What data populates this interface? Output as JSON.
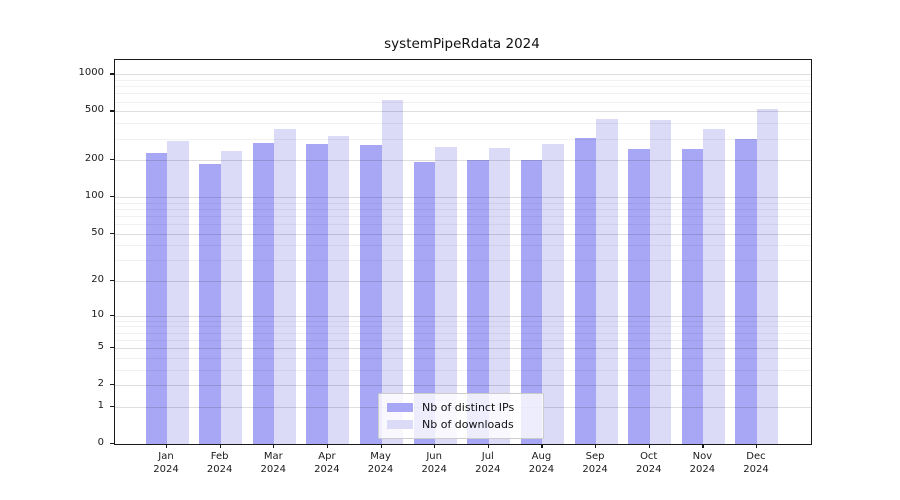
{
  "title": "systemPipeRdata 2024",
  "legend": {
    "items": [
      {
        "label": "Nb of distinct IPs",
        "color": "#a7a7f5"
      },
      {
        "label": "Nb of downloads",
        "color": "#dbdbf8"
      }
    ]
  },
  "chart_data": {
    "type": "bar",
    "title": "systemPipeRdata 2024",
    "xlabel": "",
    "ylabel": "",
    "yscale": "log1p",
    "ylim": [
      0,
      1310
    ],
    "grid": true,
    "legend_position": "bottom-center-inside",
    "categories": [
      "Jan 2024",
      "Feb 2024",
      "Mar 2024",
      "Apr 2024",
      "May 2024",
      "Jun 2024",
      "Jul 2024",
      "Aug 2024",
      "Sep 2024",
      "Oct 2024",
      "Nov 2024",
      "Dec 2024"
    ],
    "series": [
      {
        "name": "Nb of distinct IPs",
        "color": "#a7a7f5",
        "values": [
          230,
          188,
          278,
          270,
          266,
          194,
          202,
          202,
          305,
          248,
          246,
          300
        ]
      },
      {
        "name": "Nb of downloads",
        "color": "#dbdbf8",
        "values": [
          287,
          238,
          360,
          315,
          620,
          255,
          250,
          273,
          435,
          428,
          360,
          520
        ]
      }
    ],
    "yticks": [
      1000,
      500,
      200,
      100,
      50,
      20,
      10,
      5,
      2,
      1,
      0
    ],
    "minor_gridlines": [
      3,
      4,
      6,
      7,
      8,
      9,
      30,
      40,
      60,
      70,
      80,
      90,
      300,
      400,
      600,
      700,
      800,
      900
    ]
  }
}
